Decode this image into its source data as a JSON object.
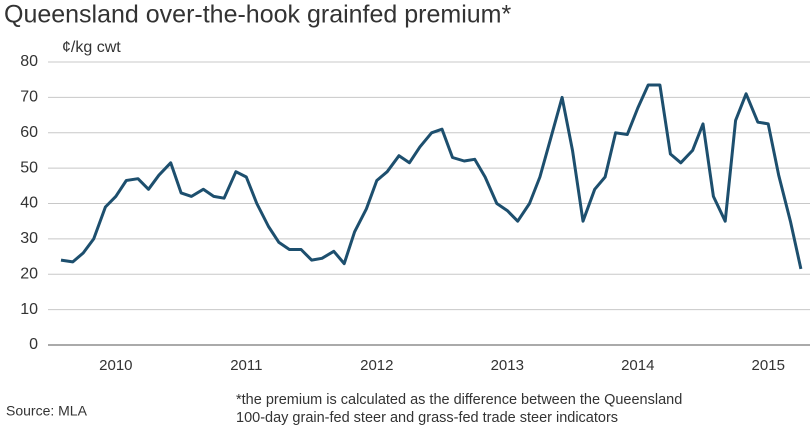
{
  "chart_data": {
    "type": "line",
    "title": "Queensland over-the-hook grainfed premium*",
    "y_label": "¢/kg cwt",
    "source": "Source: MLA",
    "note": [
      "*the premium is calculated as the difference between the Queensland",
      "100-day grain-fed steer and grass-fed trade steer indicators"
    ],
    "color": "#1d4f6e",
    "grid": true,
    "xlim": [
      2009.48,
      2015.32
    ],
    "xticks": [
      2010,
      2011,
      2012,
      2013,
      2014,
      2015
    ],
    "ylim": [
      0,
      80
    ],
    "yticks": [
      0,
      10,
      20,
      30,
      40,
      50,
      60,
      70,
      80
    ],
    "x": [
      2009.58,
      2009.67,
      2009.75,
      2009.83,
      2009.92,
      2010.0,
      2010.08,
      2010.17,
      2010.25,
      2010.33,
      2010.42,
      2010.5,
      2010.58,
      2010.67,
      2010.75,
      2010.83,
      2010.92,
      2011.0,
      2011.08,
      2011.17,
      2011.25,
      2011.33,
      2011.42,
      2011.5,
      2011.58,
      2011.67,
      2011.75,
      2011.83,
      2011.92,
      2012.0,
      2012.08,
      2012.17,
      2012.25,
      2012.33,
      2012.42,
      2012.5,
      2012.58,
      2012.67,
      2012.75,
      2012.83,
      2012.92,
      2013.0,
      2013.08,
      2013.17,
      2013.25,
      2013.33,
      2013.42,
      2013.5,
      2013.58,
      2013.67,
      2013.75,
      2013.83,
      2013.92,
      2014.0,
      2014.08,
      2014.17,
      2014.25,
      2014.33,
      2014.42,
      2014.5,
      2014.58,
      2014.67,
      2014.75,
      2014.83,
      2014.92,
      2015.0,
      2015.08,
      2015.17,
      2015.25
    ],
    "values": [
      24,
      23.5,
      26,
      30,
      39,
      42,
      46.5,
      47,
      44,
      48,
      51.5,
      43,
      42,
      44,
      42,
      41.5,
      49,
      47.5,
      40,
      33.5,
      29,
      27,
      27,
      24,
      24.5,
      26.5,
      23,
      32,
      38.5,
      46.5,
      49,
      53.5,
      51.5,
      56,
      60,
      61,
      53,
      52,
      52.5,
      47.5,
      40,
      38,
      35,
      40,
      47.5,
      58,
      70,
      55,
      35,
      44,
      47.5,
      60,
      59.5,
      67,
      73.5,
      73.5,
      54,
      51.5,
      55,
      62.5,
      42,
      35,
      63.5,
      71,
      63,
      62.5,
      48,
      35,
      21.5
    ]
  }
}
